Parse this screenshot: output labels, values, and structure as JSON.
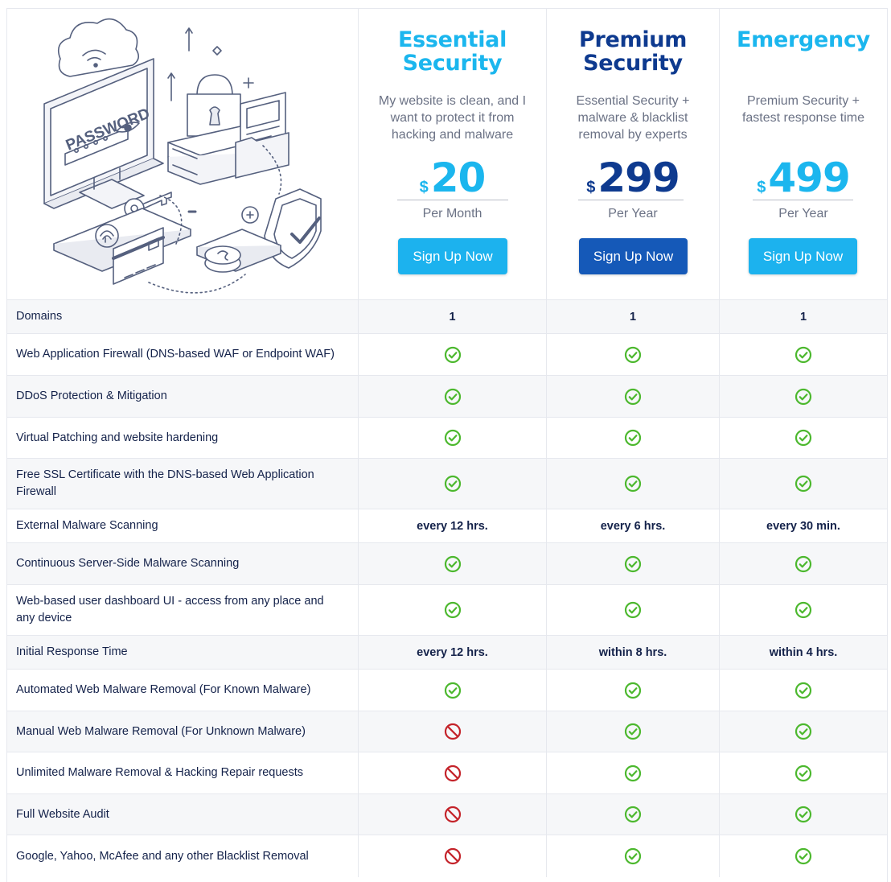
{
  "illustration": {
    "password_text": "PASSWORD"
  },
  "plans": [
    {
      "title": "Essential\nSecurity",
      "description": "My website is clean, and I\nwant to protect it from\nhacking and malware",
      "currency": "$",
      "price": "20",
      "period": "Per Month",
      "cta": "Sign Up Now",
      "accent": "#1bb6ee"
    },
    {
      "title": "Premium\nSecurity",
      "description": "Essential Security +\nmalware & blacklist\nremoval by experts",
      "currency": "$",
      "price": "299",
      "period": "Per Year",
      "cta": "Sign Up Now",
      "accent": "#0e3a8f"
    },
    {
      "title": "Emergency",
      "description": "Premium Security +\nfastest response time",
      "currency": "$",
      "price": "499",
      "period": "Per Year",
      "cta": "Sign Up Now",
      "accent": "#1bb6ee"
    }
  ],
  "colors": {
    "check": "#4cb82e",
    "not_included": "#c4232a"
  },
  "features": [
    {
      "label": "Domains",
      "values": [
        "1",
        "1",
        "1"
      ]
    },
    {
      "label": "Web Application Firewall (DNS-based WAF or Endpoint WAF)",
      "values": [
        "check-icon",
        "check-icon",
        "check-icon"
      ]
    },
    {
      "label": "DDoS Protection & Mitigation",
      "values": [
        "check-icon",
        "check-icon",
        "check-icon"
      ]
    },
    {
      "label": "Virtual Patching and website hardening",
      "values": [
        "check-icon",
        "check-icon",
        "check-icon"
      ]
    },
    {
      "label": "Free SSL Certificate with the DNS-based Web Application Firewall",
      "values": [
        "check-icon",
        "check-icon",
        "check-icon"
      ]
    },
    {
      "label": "External Malware Scanning",
      "values": [
        "every 12 hrs.",
        "every 6 hrs.",
        "every 30 min."
      ]
    },
    {
      "label": "Continuous Server-Side Malware Scanning",
      "values": [
        "check-icon",
        "check-icon",
        "check-icon"
      ]
    },
    {
      "label": "Web-based user dashboard UI - access from any place and any device",
      "values": [
        "check-icon",
        "check-icon",
        "check-icon"
      ]
    },
    {
      "label": "Initial Response Time",
      "values": [
        "every 12 hrs.",
        "within 8 hrs.",
        "within 4 hrs."
      ]
    },
    {
      "label": "Automated Web Malware Removal (For Known Malware)",
      "values": [
        "check-icon",
        "check-icon",
        "check-icon"
      ]
    },
    {
      "label": "Manual Web Malware Removal (For Unknown Malware)",
      "values": [
        "not-included-icon",
        "check-icon",
        "check-icon"
      ]
    },
    {
      "label": "Unlimited Malware Removal & Hacking Repair requests",
      "values": [
        "not-included-icon",
        "check-icon",
        "check-icon"
      ]
    },
    {
      "label": "Full Website Audit",
      "values": [
        "not-included-icon",
        "check-icon",
        "check-icon"
      ]
    },
    {
      "label": "Google, Yahoo, McAfee and any other Blacklist Removal",
      "values": [
        "not-included-icon",
        "check-icon",
        "check-icon"
      ]
    }
  ]
}
